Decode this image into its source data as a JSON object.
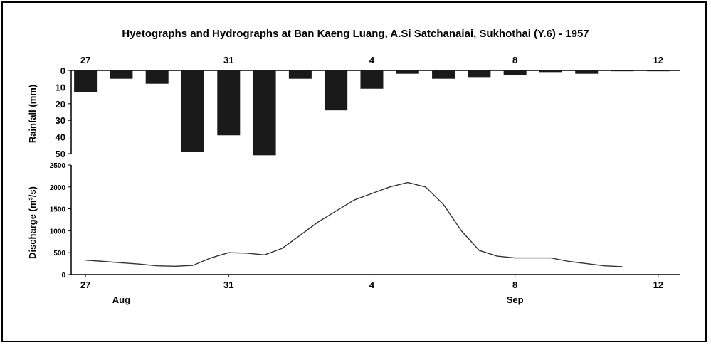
{
  "chart_data": {
    "title": "Hyetographs and Hydrographs at Ban Kaeng Luang, A.Si Satchanaiai, Sukhothai (Y.6) - 1957",
    "panels": [
      {
        "type": "bar",
        "name": "hyetograph",
        "ylabel": "Rainfall (mm)",
        "y_inverted": true,
        "ylim": [
          0,
          50
        ],
        "yticks": [
          "0",
          "10",
          "20",
          "30",
          "40",
          "50"
        ],
        "x": [
          27,
          28,
          29,
          30,
          31,
          32,
          33,
          34,
          35,
          36,
          37,
          38,
          39,
          40,
          41,
          42,
          43
        ],
        "values": [
          13,
          5,
          8,
          49,
          39,
          51,
          5,
          24,
          11,
          2,
          5,
          4,
          3,
          1,
          2,
          0.5,
          0.5
        ],
        "color": "#1a1a1a"
      },
      {
        "type": "line",
        "name": "hydrograph",
        "ylabel": "Discharge (m³/s)",
        "ylim": [
          0,
          2500
        ],
        "yticks": [
          "0",
          "500",
          "1000",
          "1500",
          "2000",
          "2500"
        ],
        "x": [
          27,
          27.5,
          28,
          28.5,
          29,
          29.5,
          30,
          30.5,
          31,
          31.5,
          32,
          32.5,
          33,
          33.5,
          34,
          34.5,
          35,
          35.5,
          36,
          36.5,
          37,
          37.5,
          38,
          38.5,
          39,
          39.5,
          40,
          40.5,
          41,
          41.5,
          42
        ],
        "values": [
          330,
          300,
          270,
          240,
          200,
          190,
          210,
          380,
          500,
          490,
          450,
          600,
          900,
          1200,
          1450,
          1700,
          1850,
          2000,
          2100,
          2000,
          1600,
          1000,
          550,
          420,
          380,
          380,
          380,
          300,
          250,
          200,
          180
        ],
        "color": "#333333"
      }
    ],
    "top_ticks": [
      {
        "x": 27,
        "label": "27"
      },
      {
        "x": 31,
        "label": "31"
      },
      {
        "x": 35,
        "label": "4"
      },
      {
        "x": 39,
        "label": "8"
      },
      {
        "x": 43,
        "label": "12"
      }
    ],
    "bottom_ticks": [
      {
        "x": 27,
        "label": "27"
      },
      {
        "x": 31,
        "label": "31"
      },
      {
        "x": 35,
        "label": "4"
      },
      {
        "x": 39,
        "label": "8"
      },
      {
        "x": 43,
        "label": "12"
      }
    ],
    "months": [
      {
        "x": 28,
        "label": "Aug"
      },
      {
        "x": 39,
        "label": "Sep"
      }
    ],
    "xlim": [
      26.6,
      43.6
    ]
  }
}
